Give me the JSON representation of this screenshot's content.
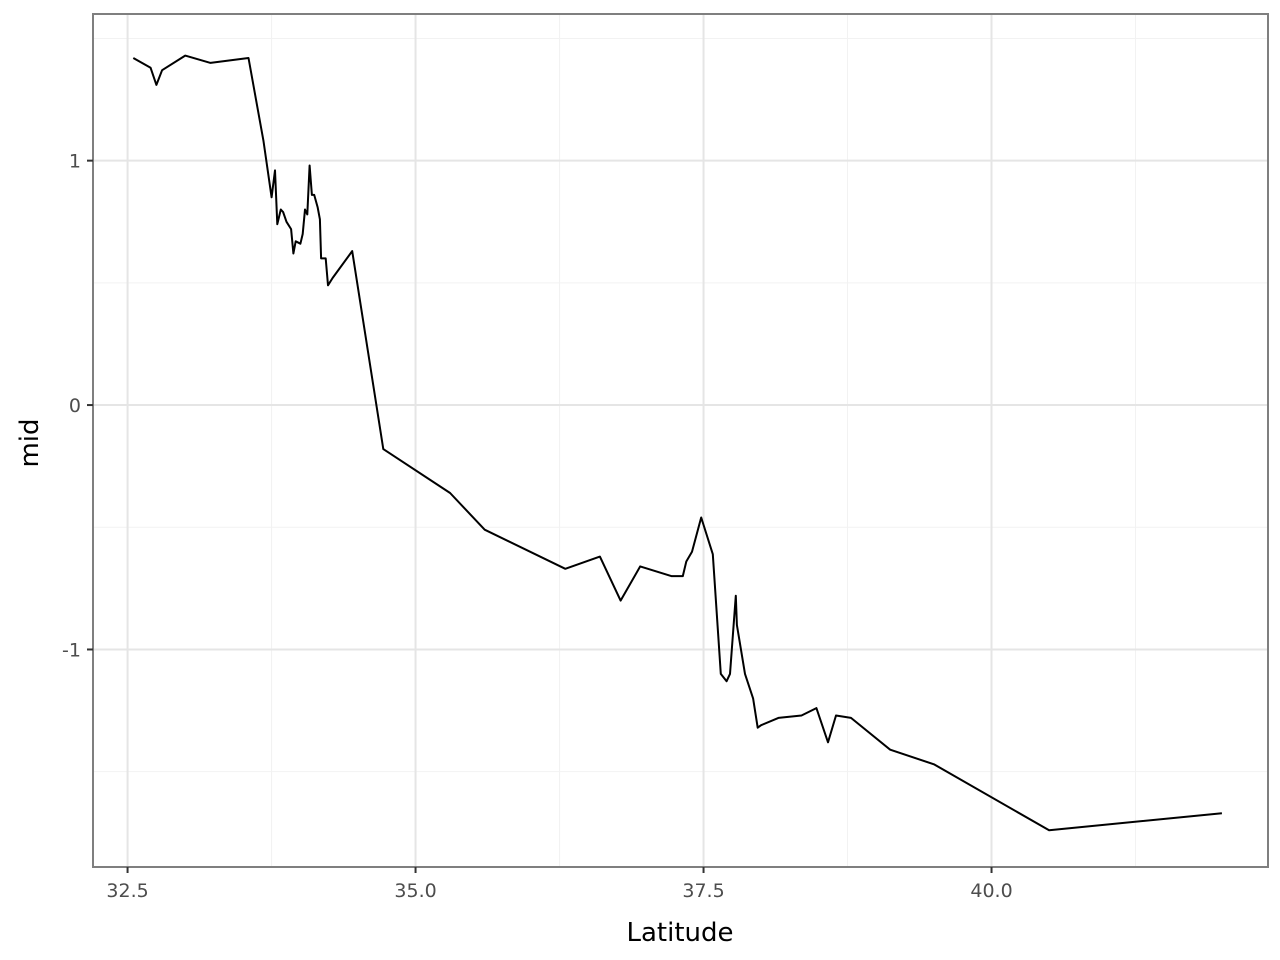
{
  "chart_data": {
    "type": "line",
    "title": "",
    "xlabel": "Latitude",
    "ylabel": "mid",
    "xlim": [
      32.2,
      42.4
    ],
    "ylim": [
      -1.89,
      1.6
    ],
    "x_ticks": [
      32.5,
      35.0,
      37.5,
      40.0
    ],
    "x_tick_labels": [
      "32.5",
      "35.0",
      "37.5",
      "40.0"
    ],
    "y_ticks": [
      -1,
      0,
      1
    ],
    "y_tick_labels": [
      "-1",
      "0",
      "1"
    ],
    "grid": true,
    "legend": "none",
    "series": [
      {
        "color": "#000000",
        "x": [
          32.55,
          32.7,
          32.75,
          32.8,
          33.0,
          33.22,
          33.55,
          33.68,
          33.75,
          33.78,
          33.8,
          33.83,
          33.85,
          33.88,
          33.92,
          33.94,
          33.96,
          34.0,
          34.02,
          34.04,
          34.06,
          34.08,
          34.1,
          34.12,
          34.15,
          34.17,
          34.18,
          34.22,
          34.24,
          34.28,
          34.45,
          34.72,
          35.3,
          35.6,
          36.3,
          36.6,
          36.78,
          36.95,
          37.22,
          37.32,
          37.35,
          37.4,
          37.48,
          37.58,
          37.65,
          37.7,
          37.73,
          37.78,
          37.79,
          37.86,
          37.93,
          37.97,
          38.0,
          38.15,
          38.35,
          38.48,
          38.58,
          38.65,
          38.78,
          39.12,
          39.5,
          40.5,
          42.0
        ],
        "y": [
          1.42,
          1.38,
          1.31,
          1.37,
          1.43,
          1.4,
          1.42,
          1.08,
          0.85,
          0.96,
          0.74,
          0.8,
          0.79,
          0.75,
          0.72,
          0.62,
          0.67,
          0.66,
          0.7,
          0.8,
          0.78,
          0.98,
          0.86,
          0.86,
          0.81,
          0.76,
          0.6,
          0.6,
          0.49,
          0.52,
          0.63,
          -0.18,
          -0.36,
          -0.51,
          -0.67,
          -0.62,
          -0.8,
          -0.66,
          -0.7,
          -0.7,
          -0.64,
          -0.6,
          -0.46,
          -0.61,
          -1.1,
          -1.13,
          -1.1,
          -0.78,
          -0.9,
          -1.1,
          -1.2,
          -1.32,
          -1.31,
          -1.28,
          -1.27,
          -1.24,
          -1.38,
          -1.27,
          -1.28,
          -1.41,
          -1.47,
          -1.74,
          -1.67
        ]
      }
    ]
  }
}
